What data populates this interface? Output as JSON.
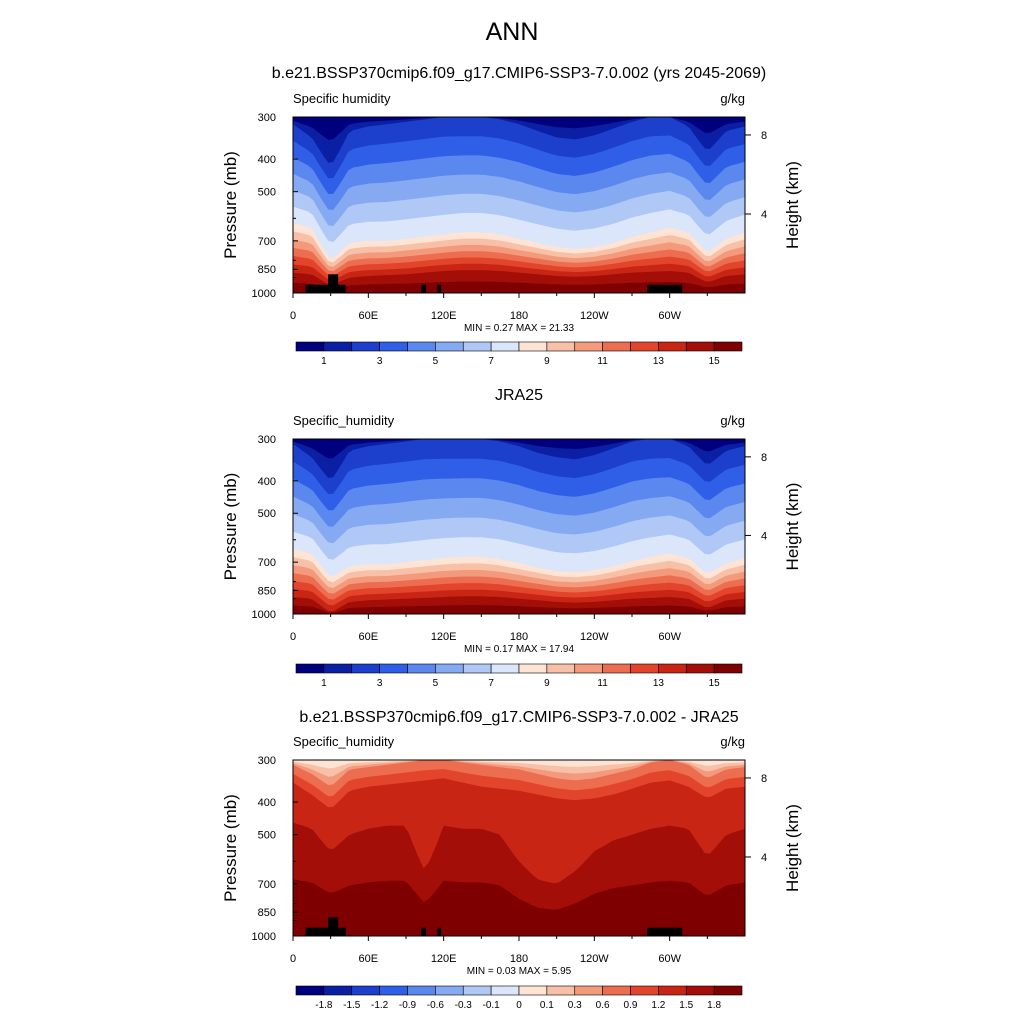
{
  "page_title": "ANN",
  "colors": {
    "fill_scale": [
      "#00007f",
      "#0a1fa3",
      "#1c3fcc",
      "#2f5fe6",
      "#5a88ef",
      "#86aaf2",
      "#b0c8f6",
      "#dbe6fb",
      "#fde4d4",
      "#f8c0a6",
      "#f39a7c",
      "#ec6d50",
      "#e2452b",
      "#c92514",
      "#a30f08",
      "#7f0000"
    ],
    "land_mask": "#000000"
  },
  "chart_data": [
    {
      "type": "heatmap",
      "title": "b.e21.BSSP370cmip6.f09_g17.CMIP6-SSP3-7.0.002 (yrs 2045-2069)",
      "left_label": "Specific humidity",
      "right_label": "g/kg",
      "ylabel": "Pressure (mb)",
      "ylabel_right": "Height (km)",
      "y_ticks": [
        "300",
        "400",
        "500",
        "700",
        "850",
        "1000"
      ],
      "y_tick_values": [
        300,
        400,
        500,
        700,
        850,
        1000
      ],
      "right_ticks": [
        "8",
        "4"
      ],
      "right_tick_values": [
        8,
        4
      ],
      "x_ticks": [
        "0",
        "60E",
        "120E",
        "180",
        "120W",
        "60W"
      ],
      "x_tick_values": [
        0,
        60,
        120,
        180,
        240,
        300
      ],
      "xlim": [
        0,
        360
      ],
      "ylim": [
        1000,
        300
      ],
      "stats": "MIN =   0.27  MAX =  21.33",
      "colorbar_labels": [
        "1",
        "3",
        "5",
        "7",
        "9",
        "11",
        "13",
        "15"
      ],
      "levels_at_longitudes": {
        "lon": [
          0,
          15,
          30,
          45,
          60,
          75,
          90,
          105,
          120,
          135,
          150,
          165,
          180,
          195,
          210,
          225,
          240,
          255,
          270,
          285,
          300,
          315,
          330,
          345,
          360
        ],
        "pressure_of_level_2": [
          315,
          345,
          420,
          330,
          320,
          315,
          310,
          305,
          300,
          300,
          300,
          305,
          315,
          330,
          345,
          350,
          340,
          325,
          310,
          300,
          300,
          320,
          380,
          330,
          320
        ],
        "pressure_of_level_8": [
          620,
          640,
          800,
          710,
          700,
          700,
          690,
          680,
          670,
          660,
          660,
          670,
          690,
          710,
          730,
          740,
          730,
          710,
          680,
          660,
          640,
          660,
          760,
          690,
          660
        ],
        "pressure_of_level_14": [
          870,
          880,
          950,
          900,
          890,
          885,
          880,
          870,
          860,
          855,
          855,
          860,
          870,
          880,
          890,
          895,
          890,
          880,
          870,
          865,
          860,
          870,
          930,
          890,
          880
        ]
      },
      "land_blocks": [
        {
          "lon": [
            10,
            42
          ],
          "p_top": 945
        },
        {
          "lon": [
            28,
            36
          ],
          "p_top": 880
        },
        {
          "lon": [
            102,
            106
          ],
          "p_top": 945
        },
        {
          "lon": [
            115,
            118
          ],
          "p_top": 945
        },
        {
          "lon": [
            282,
            310
          ],
          "p_top": 945
        }
      ]
    },
    {
      "type": "heatmap",
      "title": "JRA25",
      "left_label": "Specific_humidity",
      "right_label": "g/kg",
      "ylabel": "Pressure (mb)",
      "ylabel_right": "Height (km)",
      "y_ticks": [
        "300",
        "400",
        "500",
        "700",
        "850",
        "1000"
      ],
      "y_tick_values": [
        300,
        400,
        500,
        700,
        850,
        1000
      ],
      "right_ticks": [
        "8",
        "4"
      ],
      "right_tick_values": [
        8,
        4
      ],
      "x_ticks": [
        "0",
        "60E",
        "120E",
        "180",
        "120W",
        "60W"
      ],
      "x_tick_values": [
        0,
        60,
        120,
        180,
        240,
        300
      ],
      "xlim": [
        0,
        360
      ],
      "ylim": [
        1000,
        300
      ],
      "stats": "MIN =   0.17  MAX =  17.94",
      "colorbar_labels": [
        "1",
        "3",
        "5",
        "7",
        "9",
        "11",
        "13",
        "15"
      ],
      "levels_at_longitudes": {
        "lon": [
          0,
          15,
          30,
          45,
          60,
          75,
          90,
          105,
          120,
          135,
          150,
          165,
          180,
          195,
          210,
          225,
          240,
          255,
          270,
          285,
          300,
          315,
          330,
          345,
          360
        ],
        "pressure_of_level_2": [
          310,
          340,
          400,
          325,
          315,
          310,
          305,
          300,
          300,
          300,
          300,
          305,
          315,
          330,
          340,
          345,
          335,
          320,
          305,
          300,
          300,
          315,
          360,
          325,
          315
        ],
        "pressure_of_level_8": [
          640,
          660,
          780,
          720,
          710,
          710,
          700,
          690,
          680,
          675,
          675,
          685,
          705,
          725,
          745,
          750,
          740,
          720,
          695,
          675,
          660,
          680,
          760,
          705,
          680
        ],
        "pressure_of_level_14": [
          890,
          900,
          990,
          920,
          910,
          905,
          900,
          895,
          890,
          885,
          885,
          890,
          900,
          910,
          920,
          925,
          920,
          910,
          900,
          895,
          890,
          900,
          960,
          910,
          900
        ]
      },
      "land_blocks": []
    },
    {
      "type": "heatmap",
      "title": "b.e21.BSSP370cmip6.f09_g17.CMIP6-SSP3-7.0.002 - JRA25",
      "left_label": "Specific_humidity",
      "right_label": "g/kg",
      "ylabel": "Pressure (mb)",
      "ylabel_right": "Height (km)",
      "y_ticks": [
        "300",
        "400",
        "500",
        "700",
        "850",
        "1000"
      ],
      "y_tick_values": [
        300,
        400,
        500,
        700,
        850,
        1000
      ],
      "right_ticks": [
        "8",
        "4"
      ],
      "right_tick_values": [
        8,
        4
      ],
      "x_ticks": [
        "0",
        "60E",
        "120E",
        "180",
        "120W",
        "60W"
      ],
      "x_tick_values": [
        0,
        60,
        120,
        180,
        240,
        300
      ],
      "xlim": [
        0,
        360
      ],
      "ylim": [
        1000,
        300
      ],
      "stats": "MIN =   0.03  MAX =   5.95",
      "colorbar_labels": [
        "-1.8",
        "-1.5",
        "-1.2",
        "-0.9",
        "-0.6",
        "-0.3",
        "-0.1",
        "0",
        "0.1",
        "0.3",
        "0.6",
        "0.9",
        "1.2",
        "1.5",
        "1.8"
      ],
      "levels_at_longitudes": {
        "lon": [
          0,
          15,
          30,
          45,
          60,
          75,
          90,
          105,
          120,
          135,
          150,
          165,
          180,
          195,
          210,
          225,
          240,
          255,
          270,
          285,
          300,
          315,
          330,
          345,
          360
        ],
        "pressure_of_level_11": [
          310,
          330,
          360,
          320,
          315,
          310,
          305,
          300,
          300,
          305,
          310,
          315,
          320,
          330,
          340,
          345,
          340,
          330,
          320,
          305,
          300,
          310,
          340,
          320,
          315
        ],
        "pressure_of_level_13": [
          350,
          380,
          420,
          370,
          360,
          355,
          350,
          345,
          340,
          350,
          360,
          365,
          370,
          380,
          390,
          395,
          390,
          380,
          365,
          350,
          345,
          360,
          390,
          365,
          360
        ],
        "pressure_of_level_14": [
          460,
          480,
          560,
          500,
          480,
          470,
          470,
          640,
          470,
          480,
          480,
          500,
          600,
          680,
          700,
          640,
          560,
          520,
          500,
          480,
          470,
          480,
          580,
          500,
          480
        ]
      },
      "land_blocks": [
        {
          "lon": [
            10,
            42
          ],
          "p_top": 945
        },
        {
          "lon": [
            28,
            36
          ],
          "p_top": 880
        },
        {
          "lon": [
            102,
            106
          ],
          "p_top": 945
        },
        {
          "lon": [
            115,
            118
          ],
          "p_top": 945
        },
        {
          "lon": [
            282,
            310
          ],
          "p_top": 945
        }
      ]
    }
  ]
}
